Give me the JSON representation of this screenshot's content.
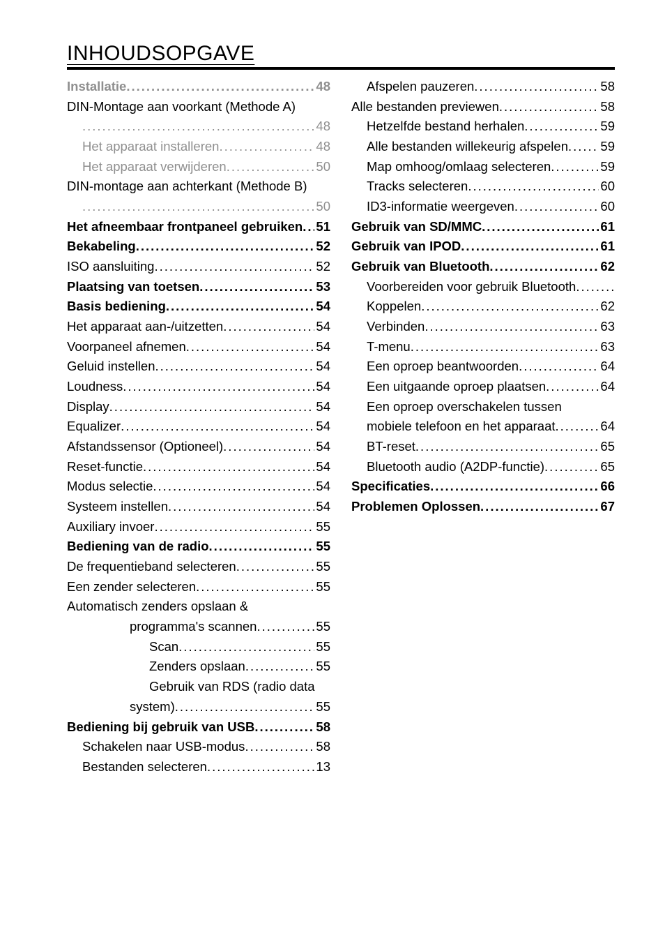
{
  "title": "INHOUDSOPGAVE",
  "left": [
    {
      "label": "Installatie",
      "page": "48",
      "bold": true,
      "gray": true
    },
    {
      "label": "DIN-Montage  aan  voorkant  (Methode  A)",
      "page": "",
      "textonly": true
    },
    {
      "label": "",
      "page": "48",
      "ind": 1,
      "gray": true,
      "contprefix": true
    },
    {
      "label": "Het apparaat installeren",
      "page": "48",
      "ind": 1,
      "gray": true
    },
    {
      "label": "Het apparaat verwijderen",
      "page": "50",
      "ind": 1,
      "gray": true
    },
    {
      "label": "DIN-montage aan achterkant (Methode B)",
      "page": "",
      "textonly": true
    },
    {
      "label": "",
      "page": "50",
      "ind": 1,
      "gray": true,
      "contprefix": true
    },
    {
      "label": "Het afneembaar frontpaneel gebruiken",
      "page": "51",
      "bold": true
    },
    {
      "label": "Bekabeling",
      "page": "52",
      "bold": true
    },
    {
      "label": "ISO aansluiting",
      "page": "52"
    },
    {
      "label": "Plaatsing van toetsen",
      "page": "53",
      "bold": true
    },
    {
      "label": "Basis bediening",
      "page": "54",
      "bold": true
    },
    {
      "label": "Het apparaat aan-/uitzetten",
      "page": "54"
    },
    {
      "label": "Voorpaneel afnemen",
      "page": "54"
    },
    {
      "label": "Geluid instellen",
      "page": "54"
    },
    {
      "label": "Loudness",
      "page": "54"
    },
    {
      "label": "Display",
      "page": "54"
    },
    {
      "label": "Equalizer",
      "page": "54"
    },
    {
      "label": "Afstandssensor (Optioneel)",
      "page": "54"
    },
    {
      "label": "Reset-functie",
      "page": "54"
    },
    {
      "label": "Modus selectie",
      "page": "54"
    },
    {
      "label": "Systeem instellen",
      "page": "54"
    },
    {
      "label": "Auxiliary invoer",
      "page": "55"
    },
    {
      "label": "Bediening van de radio",
      "page": "55",
      "bold": true
    },
    {
      "label": "De frequentieband selecteren",
      "page": "55"
    },
    {
      "label": "Een zender selecteren",
      "page": "55"
    },
    {
      "label": "Automatisch zenders opslaan &",
      "page": "",
      "textonly": true
    },
    {
      "label": "programma's scannen",
      "page": "55",
      "ind": 2
    },
    {
      "label": "Scan",
      "page": "55",
      "ind": 3
    },
    {
      "label": "Zenders opslaan",
      "page": "55",
      "ind": 3
    },
    {
      "label": "Gebruik van RDS (radio data",
      "page": "",
      "ind": 3,
      "textonly": true
    },
    {
      "label": "system)",
      "page": "55",
      "ind": 2
    },
    {
      "label": "Bediening bij gebruik van USB",
      "page": "58",
      "bold": true
    },
    {
      "label": "Schakelen naar USB-modus",
      "page": "58",
      "ind": 1
    },
    {
      "label": "Bestanden selecteren",
      "page": "13",
      "ind": 1
    }
  ],
  "right": [
    {
      "label": "Afspelen pauzeren",
      "page": "58",
      "ind": 1
    },
    {
      "label": "Alle bestanden previewen",
      "page": "58"
    },
    {
      "label": "Hetzelfde bestand herhalen",
      "page": "59",
      "ind": 1
    },
    {
      "label": "Alle bestanden willekeurig afspelen",
      "page": "59",
      "ind": 1
    },
    {
      "label": "Map omhoog/omlaag selecteren",
      "page": "59",
      "ind": 1
    },
    {
      "label": "Tracks selecteren",
      "page": "60",
      "ind": 1
    },
    {
      "label": "ID3-informatie weergeven",
      "page": "60",
      "ind": 1
    },
    {
      "label": "Gebruik van SD/MMC",
      "page": "61",
      "bold": true
    },
    {
      "label": "Gebruik van IPOD",
      "page": "61",
      "bold": true
    },
    {
      "label": "Gebruik van Bluetooth",
      "page": "62",
      "bold": true
    },
    {
      "label": "Voorbereiden voor gebruik Bluetooth",
      "page": "62",
      "ind": 1,
      "nodots": true
    },
    {
      "label": "Koppelen",
      "page": "62",
      "ind": 1
    },
    {
      "label": "Verbinden",
      "page": "63",
      "ind": 1
    },
    {
      "label": "T-menu",
      "page": "63",
      "ind": 1
    },
    {
      "label": "Een oproep beantwoorden",
      "page": "64",
      "ind": 1
    },
    {
      "label": "Een uitgaande oproep plaatsen",
      "page": "64",
      "ind": 1
    },
    {
      "label": "Een oproep overschakelen tussen",
      "page": "",
      "ind": 1,
      "textonly": true
    },
    {
      "label": "mobiele telefoon en het apparaat",
      "page": "64",
      "ind": 1
    },
    {
      "label": "BT-reset",
      "page": "65",
      "ind": 1
    },
    {
      "label": "Bluetooth audio (A2DP-functie)",
      "page": "65",
      "ind": 1
    },
    {
      "label": "Specificaties",
      "page": "66",
      "bold": true
    },
    {
      "label": "Problemen Oplossen",
      "page": "67",
      "bold": true
    }
  ]
}
